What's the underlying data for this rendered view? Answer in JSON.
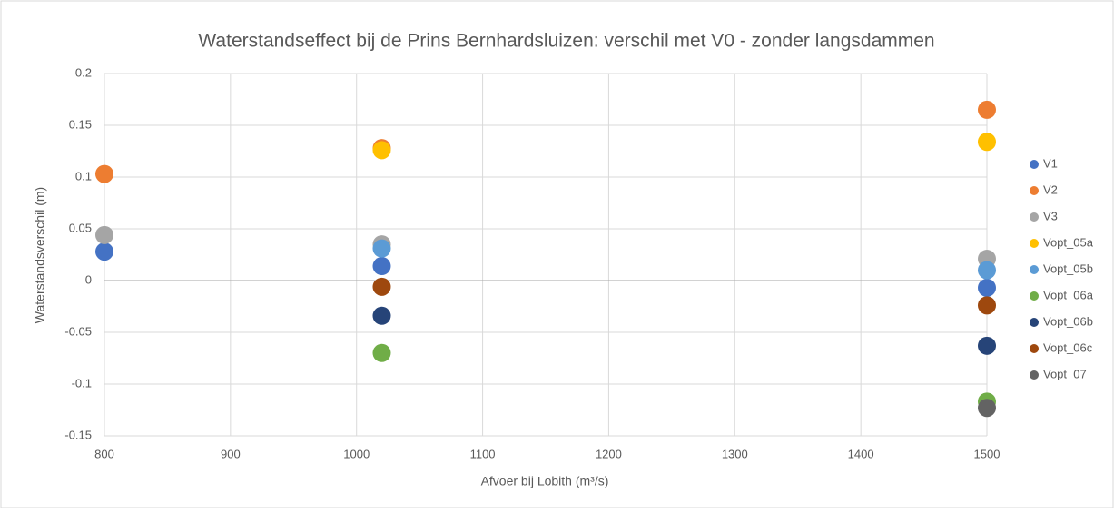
{
  "chart_data": {
    "type": "scatter",
    "title": "Waterstandseffect bij de Prins Bernhardsluizen:  verschil met V0 - zonder langsdammen",
    "x_label": "Afvoer bij Lobith (m³/s)",
    "y_label": "Waterstandsverschil (m)",
    "xlim": [
      800,
      1500
    ],
    "xticks": [
      800,
      900,
      1000,
      1100,
      1200,
      1300,
      1400,
      1500
    ],
    "ylim": [
      -0.15,
      0.2
    ],
    "yticks": [
      0.2,
      0.15,
      0.1,
      0.05,
      0,
      -0.05,
      -0.1,
      -0.15
    ],
    "grid": true,
    "legend": "right",
    "series": [
      {
        "name": "V1",
        "color": "#4472c4",
        "x": [
          800,
          1020,
          1500
        ],
        "values": [
          0.028,
          0.014,
          -0.007
        ]
      },
      {
        "name": "V2",
        "color": "#ed7d31",
        "x": [
          800,
          1020,
          1500
        ],
        "values": [
          0.103,
          0.128,
          0.165
        ]
      },
      {
        "name": "V3",
        "color": "#a5a5a5",
        "x": [
          800,
          1020,
          1500
        ],
        "values": [
          0.044,
          0.035,
          0.021
        ]
      },
      {
        "name": "Vopt_05a",
        "color": "#ffc000",
        "x": [
          1020,
          1500
        ],
        "values": [
          0.126,
          0.134
        ]
      },
      {
        "name": "Vopt_05b",
        "color": "#5b9bd5",
        "x": [
          1020,
          1500
        ],
        "values": [
          0.031,
          0.01
        ]
      },
      {
        "name": "Vopt_06a",
        "color": "#70ad47",
        "x": [
          1020,
          1500
        ],
        "values": [
          -0.07,
          -0.117
        ]
      },
      {
        "name": "Vopt_06b",
        "color": "#264478",
        "x": [
          1020,
          1500
        ],
        "values": [
          -0.034,
          -0.063
        ]
      },
      {
        "name": "Vopt_06c",
        "color": "#9e480e",
        "x": [
          1020,
          1500
        ],
        "values": [
          -0.006,
          -0.024
        ]
      },
      {
        "name": "Vopt_07",
        "color": "#636363",
        "x": [
          1500
        ],
        "values": [
          -0.123
        ]
      }
    ]
  }
}
